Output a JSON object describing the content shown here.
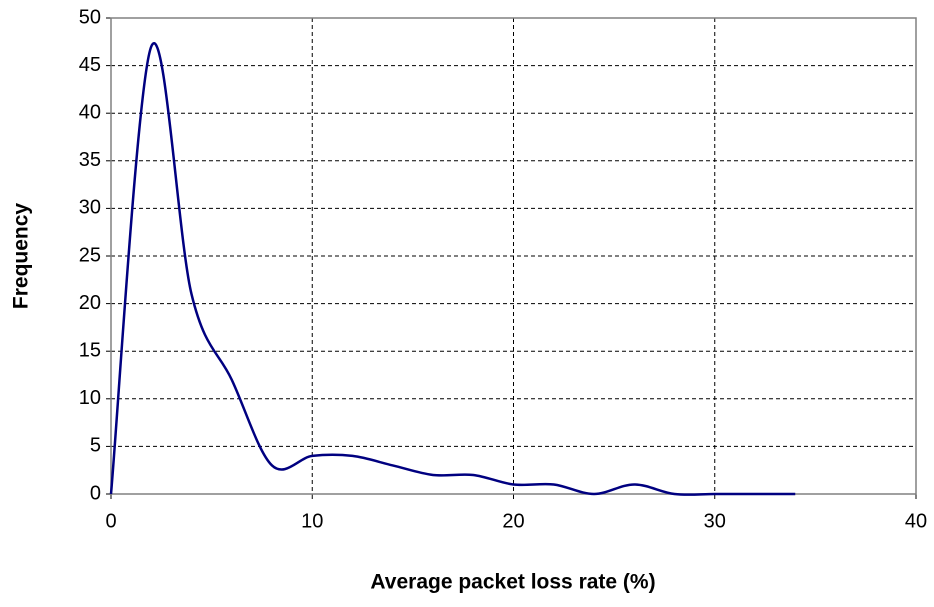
{
  "chart_data": {
    "type": "line",
    "xlabel": "Average packet loss rate (%)",
    "ylabel": "Frequency",
    "x": [
      0,
      2,
      4,
      6,
      8,
      10,
      12,
      14,
      16,
      18,
      20,
      22,
      24,
      26,
      28,
      30,
      32,
      34
    ],
    "series": [
      {
        "name": "Frequency",
        "color": "#000080",
        "values": [
          0,
          47,
          21,
          12,
          3,
          4,
          4,
          3,
          2,
          2,
          1,
          1,
          0,
          1,
          0,
          0,
          0,
          0
        ]
      }
    ],
    "xlim": [
      0,
      40
    ],
    "xticks": [
      0,
      10,
      20,
      30,
      40
    ],
    "ylim": [
      0,
      50
    ],
    "yticks": [
      0,
      5,
      10,
      15,
      20,
      25,
      30,
      35,
      40,
      45,
      50
    ],
    "grid": true,
    "smooth": true
  }
}
